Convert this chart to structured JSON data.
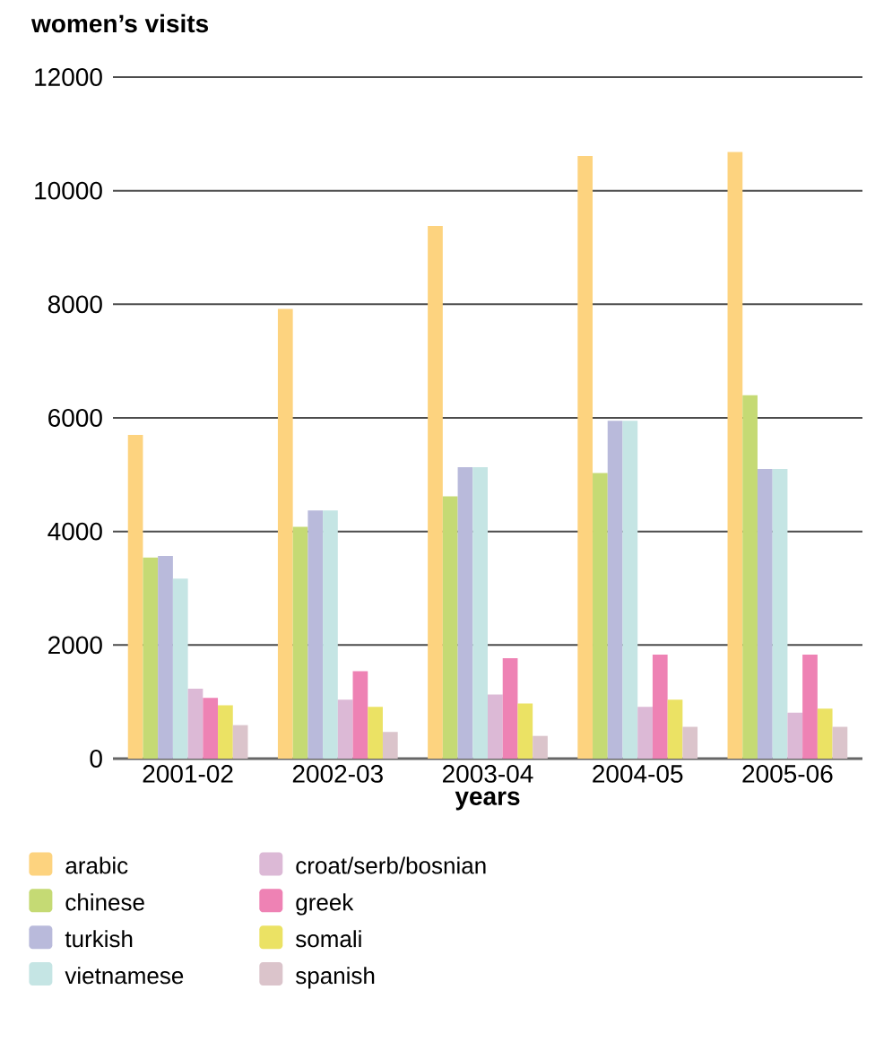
{
  "chart_data": {
    "type": "bar",
    "xlabel": "years",
    "ylabel": "women’s visits",
    "categories": [
      "2001-02",
      "2002-03",
      "2003-04",
      "2004-05",
      "2005-06"
    ],
    "series": [
      {
        "name": "arabic",
        "color": "#fdd37f",
        "values": [
          5700,
          7920,
          9380,
          10610,
          10680
        ]
      },
      {
        "name": "chinese",
        "color": "#c5da74",
        "values": [
          3540,
          4080,
          4620,
          5030,
          6400
        ]
      },
      {
        "name": "turkish",
        "color": "#b9badb",
        "values": [
          3570,
          4370,
          5130,
          5950,
          5100
        ]
      },
      {
        "name": "vietnamese",
        "color": "#c5e5e4",
        "values": [
          3170,
          4370,
          5130,
          5950,
          5100
        ]
      },
      {
        "name": "croat/serb/bosnian",
        "color": "#dcb9d6",
        "values": [
          1230,
          1040,
          1130,
          910,
          810
        ]
      },
      {
        "name": "greek",
        "color": "#ee82b4",
        "values": [
          1070,
          1540,
          1770,
          1830,
          1830
        ]
      },
      {
        "name": "somali",
        "color": "#ebe264",
        "values": [
          940,
          910,
          970,
          1040,
          880
        ]
      },
      {
        "name": "spanish",
        "color": "#dbc4cb",
        "values": [
          590,
          470,
          400,
          560,
          560
        ]
      }
    ],
    "ylim": [
      0,
      12000
    ],
    "yticks": [
      0,
      2000,
      4000,
      6000,
      8000,
      10000,
      12000
    ],
    "grid": "y",
    "legend": "bottom"
  }
}
